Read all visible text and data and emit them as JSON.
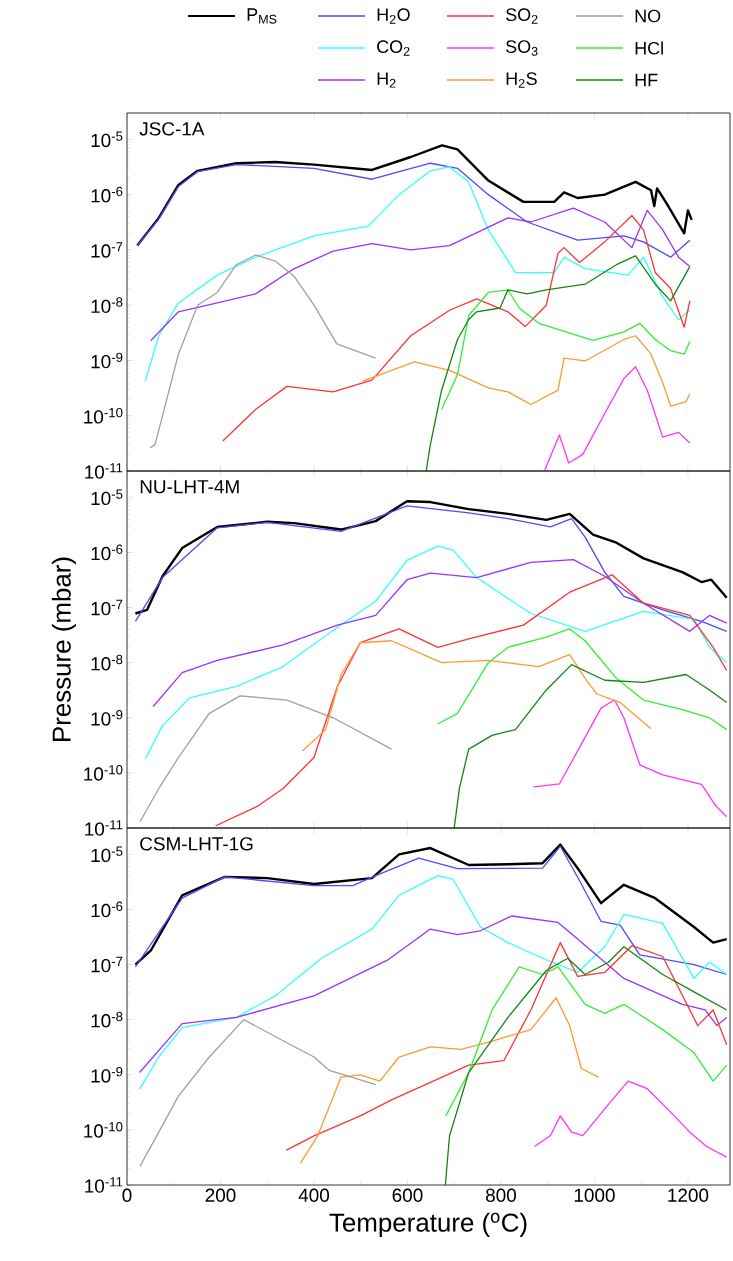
{
  "chart_data": [
    {
      "type": "line",
      "title": "JSC-1A",
      "log": true,
      "legend": "top",
      "tick_labels": "y",
      "xlim": [
        0,
        1290
      ],
      "xticks": [
        0,
        200,
        400,
        600,
        800,
        1000,
        1200
      ],
      "ylim": [
        1e-11,
        3e-05
      ],
      "yticks": [
        {
          "value": 1e-11,
          "label": "10$^{-11}$"
        },
        {
          "value": 1e-10,
          "label": "10$^{-10}$"
        },
        {
          "value": 1e-09,
          "label": "10$^{-9}$"
        },
        {
          "value": 1e-08,
          "label": "10$^{-8}$"
        },
        {
          "value": 1e-07,
          "label": "10$^{-7}$"
        },
        {
          "value": 1e-06,
          "label": "10$^{-6}$"
        },
        {
          "value": 1e-05,
          "label": "10$^{-5}$"
        }
      ],
      "series": [
        {
          "name": "P$_{MS}$",
          "color": "#000000",
          "x": [
            22,
            68,
            110,
            151,
            234,
            317,
            400,
            524,
            607,
            674,
            707,
            773,
            848,
            914,
            935,
            964,
            1022,
            1088,
            1121,
            1128,
            1134,
            1155,
            1192,
            1200,
            1208
          ],
          "values": [
            1.2e-07,
            3.8e-07,
            1.5e-06,
            2.7e-06,
            3.7e-06,
            3.9e-06,
            3.5e-06,
            2.8e-06,
            4.8e-06,
            7.8e-06,
            6.6e-06,
            1.8e-06,
            7.4e-07,
            7.4e-07,
            1.1e-06,
            8.7e-07,
            1e-06,
            1.7e-06,
            1.2e-06,
            6.2e-07,
            1.3e-06,
            6.8e-07,
            2e-07,
            5.2e-07,
            3.5e-07
          ]
        },
        {
          "name": "H$_{2}$O",
          "color": "#4b4bff",
          "x": [
            22,
            68,
            110,
            151,
            234,
            400,
            524,
            649,
            707,
            773,
            856,
            964,
            1063,
            1105,
            1163,
            1204
          ],
          "values": [
            1.2e-07,
            3.6e-07,
            1.4e-06,
            2.6e-06,
            3.5e-06,
            3e-06,
            1.9e-06,
            3.7e-06,
            3e-06,
            1e-06,
            3.2e-07,
            1.5e-07,
            1.8e-07,
            1.4e-07,
            7.4e-08,
            1.5e-07
          ]
        },
        {
          "name": "CO$_{2}$",
          "color": "#33ffff",
          "x": [
            39,
            68,
            110,
            193,
            275,
            400,
            516,
            582,
            649,
            690,
            731,
            773,
            831,
            914,
            935,
            980,
            1072,
            1105,
            1146,
            1180,
            1204
          ],
          "values": [
            4.2e-10,
            2.8e-09,
            1.1e-08,
            3.5e-08,
            7.4e-08,
            1.8e-07,
            2.7e-07,
            1e-06,
            2.7e-06,
            3.2e-06,
            1.7e-06,
            2.3e-07,
            3.9e-08,
            3.9e-08,
            7.4e-08,
            4.6e-08,
            3.5e-08,
            7.4e-08,
            1.4e-08,
            5.5e-09,
            8.1e-09
          ]
        },
        {
          "name": "H$_{2}$",
          "color": "#9933ff",
          "x": [
            51,
            110,
            193,
            275,
            358,
            441,
            524,
            607,
            690,
            815,
            864,
            955,
            1022,
            1080,
            1113,
            1146,
            1180,
            1204
          ],
          "values": [
            2.3e-09,
            7.6e-09,
            1.1e-08,
            1.6e-08,
            4.6e-08,
            9.5e-08,
            1.3e-07,
            1e-07,
            1.2e-07,
            3.8e-07,
            3.2e-07,
            5.7e-07,
            3.2e-07,
            1.1e-07,
            5.2e-07,
            2.3e-07,
            7.4e-08,
            5e-08
          ]
        },
        {
          "name": "SO$_{2}$",
          "color": "#ff3333",
          "x": [
            205,
            275,
            342,
            441,
            524,
            607,
            690,
            748,
            815,
            852,
            897,
            922,
            935,
            968,
            1022,
            1080,
            1105,
            1130,
            1163,
            1192,
            1204
          ],
          "values": [
            3.5e-11,
            1.3e-10,
            3.4e-10,
            2.7e-10,
            4.4e-10,
            2.8e-09,
            8.1e-09,
            1.3e-08,
            7.6e-09,
            4.1e-09,
            1e-08,
            8.7e-08,
            1.1e-07,
            5.9e-08,
            1.4e-07,
            4.2e-07,
            2.3e-07,
            3.9e-08,
            2e-08,
            4e-09,
            1.2e-08
          ]
        },
        {
          "name": "SO$_{3}$",
          "color": "#ff33ff",
          "x": [
            893,
            925,
            945,
            975,
            1022,
            1063,
            1088,
            1113,
            1146,
            1180,
            1204
          ],
          "values": [
            1e-11,
            4.5e-11,
            1.4e-11,
            2e-11,
            1.1e-10,
            4.7e-10,
            7.7e-10,
            2.9e-10,
            4.1e-11,
            5e-11,
            3.2e-11
          ]
        },
        {
          "name": "H$_{2}$S",
          "color": "#ff9933",
          "x": [
            503,
            566,
            615,
            690,
            773,
            815,
            864,
            922,
            935,
            980,
            1063,
            1088,
            1121,
            1146,
            1163,
            1196,
            1204
          ],
          "values": [
            4.2e-10,
            6.6e-10,
            9.4e-10,
            6.6e-10,
            3.2e-10,
            2.7e-10,
            1.6e-10,
            2.9e-10,
            1.1e-09,
            9.8e-10,
            2.4e-09,
            2.8e-09,
            1.3e-09,
            4e-10,
            1.5e-10,
            1.8e-10,
            2.5e-10
          ]
        },
        {
          "name": "NO",
          "color": "#a0a0a0",
          "x": [
            49,
            60,
            110,
            151,
            193,
            234,
            275,
            317,
            358,
            400,
            449,
            532
          ],
          "values": [
            2.6e-11,
            3e-11,
            1.3e-09,
            1e-08,
            1.7e-08,
            5.4e-08,
            8.1e-08,
            6.3e-08,
            3.3e-08,
            1e-08,
            2e-09,
            1.1e-09
          ]
        },
        {
          "name": "HCl",
          "color": "#33ee33",
          "x": [
            673,
            707,
            731,
            773,
            815,
            839,
            881,
            939,
            997,
            1063,
            1097,
            1130,
            1163,
            1192,
            1204
          ],
          "values": [
            1.3e-10,
            5.5e-10,
            6.5e-09,
            1.7e-08,
            1.9e-08,
            8.9e-09,
            4.7e-09,
            3.3e-09,
            2.3e-09,
            3.3e-09,
            4.7e-09,
            2.4e-09,
            1.5e-09,
            1.3e-09,
            2.2e-09
          ]
        },
        {
          "name": "HF",
          "color": "#118811",
          "x": [
            640,
            649,
            673,
            707,
            731,
            748,
            798,
            815,
            856,
            897,
            980,
            1047,
            1088,
            1130,
            1163,
            1204
          ],
          "values": [
            1e-11,
            3e-11,
            2.9e-10,
            2.4e-09,
            5.5e-09,
            7.6e-09,
            8.9e-09,
            1.9e-08,
            1.6e-08,
            1.9e-08,
            2.4e-08,
            5.4e-08,
            7.8e-08,
            2.4e-08,
            1.2e-08,
            5e-08
          ]
        }
      ]
    },
    {
      "type": "line",
      "title": "NU-LHT-4M",
      "ylabel": "Pressure (mbar)",
      "log": true,
      "tick_labels": "y",
      "xlim": [
        0,
        1290
      ],
      "xticks": [
        0,
        200,
        400,
        600,
        800,
        1000,
        1200
      ],
      "ylim": [
        1e-11,
        3e-05
      ],
      "yticks": [
        {
          "value": 1e-11,
          "label": "10$^{-11}$"
        },
        {
          "value": 1e-10,
          "label": "10$^{-10}$"
        },
        {
          "value": 1e-09,
          "label": "10$^{-9}$"
        },
        {
          "value": 1e-08,
          "label": "10$^{-8}$"
        },
        {
          "value": 1e-07,
          "label": "10$^{-7}$"
        },
        {
          "value": 1e-06,
          "label": "10$^{-6}$"
        },
        {
          "value": 1e-05,
          "label": "10$^{-5}$"
        }
      ],
      "series": [
        {
          "color": "#000000",
          "x": [
            18,
            43,
            76,
            118,
            193,
            300,
            358,
            458,
            532,
            599,
            649,
            731,
            815,
            897,
            947,
            997,
            1047,
            1105,
            1188,
            1229,
            1250,
            1283
          ],
          "values": [
            7.8e-08,
            9.1e-08,
            3.7e-07,
            1.2e-06,
            2.9e-06,
            3.6e-06,
            3.4e-06,
            2.6e-06,
            3.7e-06,
            8.5e-06,
            8.2e-06,
            6.1e-06,
            5e-06,
            3.9e-06,
            5e-06,
            2.1e-06,
            1.5e-06,
            7.8e-07,
            4.4e-07,
            2.9e-07,
            3.2e-07,
            1.5e-07
          ]
        },
        {
          "color": "#4b4bff",
          "x": [
            18,
            76,
            193,
            300,
            458,
            599,
            731,
            815,
            906,
            951,
            980,
            1022,
            1063,
            1146,
            1229,
            1283
          ],
          "values": [
            5.6e-08,
            3.5e-07,
            2.8e-06,
            3.5e-06,
            2.4e-06,
            7e-06,
            5.2e-06,
            4.1e-06,
            2.9e-06,
            4.1e-06,
            1.9e-06,
            4.4e-07,
            1.6e-07,
            9.1e-08,
            5.6e-08,
            3.7e-08
          ]
        },
        {
          "color": "#33ffff",
          "x": [
            39,
            76,
            134,
            234,
            334,
            450,
            532,
            599,
            665,
            698,
            748,
            864,
            980,
            1105,
            1213,
            1246,
            1283
          ],
          "values": [
            1.8e-10,
            7.2e-10,
            2.3e-09,
            3.7e-09,
            8.5e-09,
            4.4e-08,
            1.3e-07,
            7.2e-07,
            1.3e-06,
            1.1e-06,
            3.5e-07,
            7.8e-08,
            3.7e-08,
            8.5e-08,
            6.1e-08,
            1.9e-08,
            1e-08
          ]
        },
        {
          "color": "#9933ff",
          "x": [
            56,
            118,
            193,
            334,
            450,
            532,
            599,
            649,
            748,
            864,
            955,
            1022,
            1105,
            1204,
            1246,
            1283
          ],
          "values": [
            1.6e-09,
            6.6e-09,
            1.1e-08,
            2.1e-08,
            4.8e-08,
            7.2e-08,
            3.2e-07,
            4.2e-07,
            3.5e-07,
            6.6e-07,
            7.4e-07,
            3.7e-07,
            1.2e-07,
            3.7e-08,
            7.2e-08,
            5.2e-08
          ]
        },
        {
          "color": "#ff3333",
          "x": [
            190,
            280,
            334,
            400,
            450,
            499,
            582,
            665,
            731,
            848,
            947,
            1038,
            1105,
            1204,
            1254,
            1283
          ],
          "values": [
            1.1e-11,
            2.5e-11,
            5.2e-11,
            1.9e-10,
            3.7e-09,
            2.3e-08,
            4.1e-08,
            1.9e-08,
            2.7e-08,
            4.8e-08,
            1.9e-07,
            3.9e-07,
            1.2e-07,
            7.2e-08,
            1.9e-08,
            7.2e-09
          ]
        },
        {
          "color": "#ff33ff",
          "x": [
            870,
            925,
            980,
            1014,
            1043,
            1063,
            1097,
            1146,
            1229,
            1260,
            1283
          ],
          "values": [
            5.6e-11,
            6.3e-11,
            4.4e-10,
            1.5e-09,
            2.1e-09,
            1e-09,
            1.4e-10,
            9.2e-11,
            6.2e-11,
            2.5e-11,
            1.6e-11
          ]
        },
        {
          "color": "#ff9933",
          "x": [
            375,
            425,
            458,
            499,
            566,
            673,
            773,
            881,
            947,
            980,
            1005,
            1055,
            1121
          ],
          "values": [
            2.5e-10,
            6.1e-10,
            6.1e-09,
            2.3e-08,
            2.5e-08,
            1e-08,
            1.1e-08,
            8.5e-09,
            1.4e-08,
            5.2e-09,
            2.7e-09,
            1.9e-09,
            6.3e-10
          ]
        },
        {
          "color": "#a0a0a0",
          "x": [
            28,
            68,
            110,
            176,
            242,
            342,
            441,
            566
          ],
          "values": [
            1.3e-11,
            5.2e-11,
            1.9e-10,
            1.2e-09,
            2.5e-09,
            2.1e-09,
            1e-09,
            2.7e-10
          ]
        },
        {
          "color": "#33ee33",
          "x": [
            665,
            707,
            773,
            815,
            897,
            947,
            980,
            1047,
            1105,
            1188,
            1246,
            1283
          ],
          "values": [
            7.7e-10,
            1.2e-09,
            1e-08,
            1.9e-08,
            2.9e-08,
            4.1e-08,
            2.5e-08,
            5.2e-09,
            2.1e-09,
            1.4e-09,
            1e-09,
            6.1e-10
          ]
        },
        {
          "color": "#118811",
          "x": [
            700,
            711,
            731,
            781,
            831,
            897,
            951,
            1022,
            1105,
            1196,
            1246,
            1283
          ],
          "values": [
            1e-11,
            5.2e-11,
            2.7e-10,
            4.8e-10,
            6.1e-10,
            3.2e-09,
            9.2e-09,
            4.8e-09,
            4.4e-09,
            6.1e-09,
            3.2e-09,
            1.9e-09
          ]
        }
      ]
    },
    {
      "type": "line",
      "title": "CSM-LHT-1G",
      "xlabel": "Temperature ($^{o}$C)",
      "log": true,
      "xlim": [
        0,
        1290
      ],
      "xticks": [
        0,
        200,
        400,
        600,
        800,
        1000,
        1200
      ],
      "ylim": [
        1e-11,
        3e-05
      ],
      "yticks": [
        {
          "value": 1e-11,
          "label": "10$^{-11}$"
        },
        {
          "value": 1e-10,
          "label": "10$^{-10}$"
        },
        {
          "value": 1e-09,
          "label": "10$^{-9}$"
        },
        {
          "value": 1e-08,
          "label": "10$^{-8}$"
        },
        {
          "value": 1e-07,
          "label": "10$^{-7}$"
        },
        {
          "value": 1e-06,
          "label": "10$^{-6}$"
        },
        {
          "value": 1e-05,
          "label": "10$^{-5}$"
        }
      ],
      "series": [
        {
          "color": "#000000",
          "x": [
            18,
            51,
            118,
            209,
            300,
            400,
            524,
            582,
            649,
            731,
            815,
            889,
            927,
            964,
            1014,
            1063,
            1130,
            1213,
            1254,
            1283
          ],
          "values": [
            1e-07,
            1.8e-07,
            1.8e-06,
            3.9e-06,
            3.7e-06,
            2.9e-06,
            3.7e-06,
            1e-05,
            1.3e-05,
            6.4e-06,
            6.6e-06,
            6.9e-06,
            1.5e-05,
            5.6e-06,
            1.3e-06,
            2.8e-06,
            1.6e-06,
            4.8e-07,
            2.5e-07,
            2.9e-07
          ]
        },
        {
          "color": "#4b4bff",
          "x": [
            18,
            118,
            209,
            400,
            483,
            532,
            624,
            707,
            889,
            927,
            972,
            1014,
            1055,
            1097,
            1213,
            1283
          ],
          "values": [
            9.1e-08,
            1.6e-06,
            3.9e-06,
            2.7e-06,
            2.7e-06,
            4.1e-06,
            8.5e-06,
            5.5e-06,
            5.6e-06,
            1.4e-05,
            2.9e-06,
            6.1e-07,
            5.2e-07,
            1.5e-07,
            1e-07,
            6.6e-08
          ]
        },
        {
          "color": "#33ffff",
          "x": [
            27,
            68,
            118,
            234,
            317,
            416,
            524,
            582,
            665,
            698,
            756,
            815,
            889,
            964,
            1022,
            1063,
            1146,
            1213,
            1246,
            1283
          ],
          "values": [
            5.5e-10,
            2.1e-09,
            7.2e-09,
            1.1e-08,
            2.7e-08,
            1.3e-07,
            4.4e-07,
            1.8e-06,
            4.1e-06,
            3.5e-06,
            4.8e-07,
            2.5e-07,
            1.3e-07,
            7.2e-08,
            2.1e-07,
            8.1e-07,
            5.6e-07,
            5.6e-08,
            1.1e-07,
            6.6e-08
          ]
        },
        {
          "color": "#9933ff",
          "x": [
            27,
            118,
            234,
            400,
            557,
            649,
            707,
            756,
            823,
            922,
            964,
            1063,
            1188,
            1237,
            1262,
            1283
          ],
          "values": [
            1.1e-09,
            8.5e-09,
            1.1e-08,
            2.7e-08,
            1.2e-07,
            4.4e-07,
            3.5e-07,
            4.1e-07,
            7.6e-07,
            5.8e-07,
            2.9e-07,
            5.6e-08,
            1.9e-08,
            1.5e-08,
            7.8e-09,
            1.1e-08
          ]
        },
        {
          "color": "#ff3333",
          "x": [
            341,
            400,
            499,
            566,
            731,
            806,
            864,
            927,
            964,
            1022,
            1080,
            1146,
            1221,
            1254,
            1283
          ],
          "values": [
            4.3e-11,
            7.8e-11,
            1.8e-10,
            3.5e-10,
            1.5e-09,
            1.8e-09,
            1.5e-08,
            2.5e-07,
            6.1e-08,
            7.2e-08,
            2.2e-07,
            1.4e-07,
            7.8e-09,
            1.5e-08,
            3.5e-09
          ]
        },
        {
          "color": "#ff33ff",
          "x": [
            872,
            906,
            927,
            951,
            975,
            1030,
            1072,
            1113,
            1163,
            1204,
            1240,
            1283
          ],
          "values": [
            5e-11,
            7.9e-11,
            1.8e-10,
            9.1e-11,
            7.9e-11,
            2.9e-10,
            7.7e-10,
            5.6e-10,
            2.1e-10,
            9.1e-11,
            5e-11,
            3.2e-11
          ]
        },
        {
          "color": "#ff9933",
          "x": [
            371,
            408,
            458,
            499,
            541,
            582,
            649,
            715,
            781,
            864,
            918,
            947,
            972,
            1009
          ],
          "values": [
            2.5e-11,
            7.8e-11,
            9.1e-10,
            1e-09,
            7.7e-10,
            2.1e-09,
            3.2e-09,
            2.9e-09,
            4.1e-09,
            6.6e-09,
            2.5e-08,
            7.8e-09,
            1.3e-09,
            9.1e-10
          ]
        },
        {
          "color": "#a0a0a0",
          "x": [
            28,
            68,
            110,
            176,
            250,
            350,
            400,
            433,
            532
          ],
          "values": [
            2.2e-11,
            9.1e-11,
            4.1e-10,
            2.1e-09,
            1e-08,
            3.5e-09,
            2.1e-09,
            1.2e-09,
            6.6e-10
          ]
        },
        {
          "color": "#33ee33",
          "x": [
            682,
            731,
            781,
            839,
            889,
            922,
            980,
            1022,
            1063,
            1146,
            1213,
            1254,
            1283
          ],
          "values": [
            1.8e-10,
            1.1e-09,
            1.5e-08,
            9.1e-08,
            6.6e-08,
            9.1e-08,
            1.9e-08,
            1.3e-08,
            1.9e-08,
            6.6e-09,
            2.5e-09,
            7.7e-10,
            1.5e-09
          ]
        },
        {
          "color": "#118811",
          "x": [
            681,
            690,
            731,
            815,
            897,
            943,
            980,
            1030,
            1063,
            1146,
            1213,
            1283
          ],
          "values": [
            1e-11,
            7.8e-11,
            1.1e-09,
            1.1e-08,
            7.8e-08,
            1.3e-07,
            6.6e-08,
            1.1e-07,
            2.1e-07,
            6.6e-08,
            3.2e-08,
            1.5e-08
          ]
        }
      ]
    }
  ]
}
